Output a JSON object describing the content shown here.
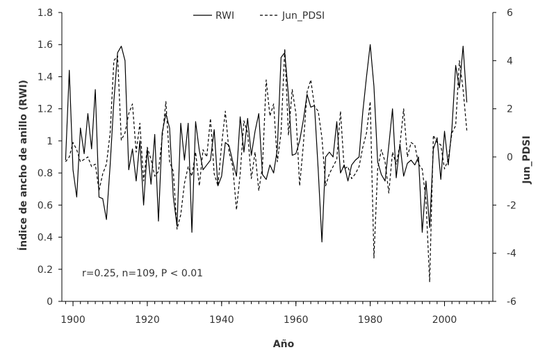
{
  "chart_data": {
    "type": "line",
    "xlabel": "Año",
    "ylabel": "Índice de ancho de anillo (RWI)",
    "y2label": "Jun_PDSI",
    "xlim": [
      1897,
      2013
    ],
    "ylim": [
      0,
      1.8
    ],
    "y2lim": [
      -6,
      6
    ],
    "x_ticks": [
      "1900",
      "1920",
      "1940",
      "1960",
      "1980",
      "2000"
    ],
    "y_ticks": [
      "0",
      "0.2",
      "0.4",
      "0.6",
      "0.8",
      "1",
      "1.2",
      "1.4",
      "1.6",
      "1.8"
    ],
    "y2_ticks": [
      "6",
      "4",
      "2",
      "0",
      "-2",
      "-4",
      "-6"
    ],
    "legend_position": "top-center",
    "grid": false,
    "annotation": "r=0.25, n=109, P < 0.01",
    "x": [
      1898,
      1899,
      1900,
      1901,
      1902,
      1903,
      1904,
      1905,
      1906,
      1907,
      1908,
      1909,
      1910,
      1911,
      1912,
      1913,
      1914,
      1915,
      1916,
      1917,
      1918,
      1919,
      1920,
      1921,
      1922,
      1923,
      1924,
      1925,
      1926,
      1927,
      1928,
      1929,
      1930,
      1931,
      1932,
      1933,
      1934,
      1935,
      1936,
      1937,
      1938,
      1939,
      1940,
      1941,
      1942,
      1943,
      1944,
      1945,
      1946,
      1947,
      1948,
      1949,
      1950,
      1951,
      1952,
      1953,
      1954,
      1955,
      1956,
      1957,
      1958,
      1959,
      1960,
      1961,
      1962,
      1963,
      1964,
      1965,
      1966,
      1967,
      1968,
      1969,
      1970,
      1971,
      1972,
      1973,
      1974,
      1975,
      1976,
      1977,
      1978,
      1979,
      1980,
      1981,
      1982,
      1983,
      1984,
      1985,
      1986,
      1987,
      1988,
      1989,
      1990,
      1991,
      1992,
      1993,
      1994,
      1995,
      1996,
      1997,
      1998,
      1999,
      2000,
      2001,
      2002,
      2003,
      2004,
      2005,
      2006
    ],
    "series": [
      {
        "name": "RWI",
        "style": "solid",
        "color": "#000000",
        "axis": "left",
        "values": [
          0.88,
          1.44,
          0.82,
          0.65,
          1.08,
          0.92,
          1.17,
          0.95,
          1.32,
          0.65,
          0.64,
          0.51,
          0.85,
          1.25,
          1.55,
          1.59,
          1.5,
          0.82,
          0.95,
          0.75,
          1.0,
          0.6,
          0.95,
          0.73,
          1.04,
          0.5,
          1.05,
          1.17,
          1.08,
          0.65,
          0.47,
          1.11,
          0.88,
          1.11,
          0.43,
          1.12,
          0.94,
          0.82,
          0.85,
          0.88,
          1.07,
          0.72,
          0.78,
          0.99,
          0.97,
          0.87,
          0.78,
          1.15,
          0.93,
          1.14,
          0.91,
          1.06,
          1.17,
          0.79,
          0.76,
          0.85,
          0.8,
          0.95,
          1.52,
          1.55,
          1.28,
          0.91,
          0.92,
          1.0,
          1.13,
          1.29,
          1.21,
          1.22,
          0.82,
          0.37,
          0.9,
          0.93,
          0.9,
          1.12,
          0.8,
          0.85,
          0.75,
          0.85,
          0.88,
          0.9,
          1.18,
          1.4,
          1.6,
          1.34,
          0.87,
          0.79,
          0.75,
          0.97,
          1.2,
          0.77,
          0.98,
          0.78,
          0.86,
          0.88,
          0.85,
          0.9,
          0.43,
          0.75,
          0.46,
          0.95,
          1.02,
          0.76,
          1.06,
          0.85,
          1.08,
          1.47,
          1.33,
          1.59,
          1.24
        ]
      },
      {
        "name": "Jun_PDSI",
        "style": "dashed",
        "color": "#000000",
        "axis": "right",
        "values": [
          -0.2,
          0.0,
          0.6,
          0.3,
          -0.2,
          -0.1,
          0.0,
          -0.4,
          -0.3,
          -1.4,
          -0.7,
          -0.3,
          1.0,
          4.0,
          4.2,
          0.7,
          1.0,
          1.8,
          2.2,
          0.2,
          1.4,
          -1.0,
          0.4,
          -0.1,
          -0.8,
          -0.6,
          0.8,
          2.3,
          -0.2,
          -0.6,
          -3.0,
          -2.4,
          -1.1,
          -0.4,
          -0.8,
          0.2,
          -1.2,
          0.3,
          0.0,
          1.6,
          -0.7,
          -1.2,
          0.5,
          1.9,
          0.2,
          -0.4,
          -2.2,
          -0.7,
          1.5,
          1.0,
          -0.9,
          0.2,
          -1.4,
          -0.4,
          3.2,
          1.7,
          2.2,
          -0.2,
          1.0,
          4.5,
          0.9,
          2.8,
          1.8,
          -1.2,
          0.5,
          2.7,
          3.2,
          2.1,
          1.9,
          0.8,
          -1.2,
          -0.7,
          -0.4,
          -0.1,
          1.9,
          -0.5,
          -0.4,
          -0.9,
          -0.7,
          -0.4,
          0.4,
          1.0,
          2.3,
          -4.2,
          -0.5,
          0.3,
          -0.2,
          -1.5,
          0.2,
          -0.3,
          0.5,
          2.0,
          0.0,
          0.6,
          0.5,
          -0.3,
          -0.5,
          -1.8,
          -5.2,
          0.9,
          0.6,
          0.5,
          -0.5,
          -0.1,
          1.0,
          1.3,
          4.0,
          2.8,
          1.1
        ]
      }
    ]
  }
}
